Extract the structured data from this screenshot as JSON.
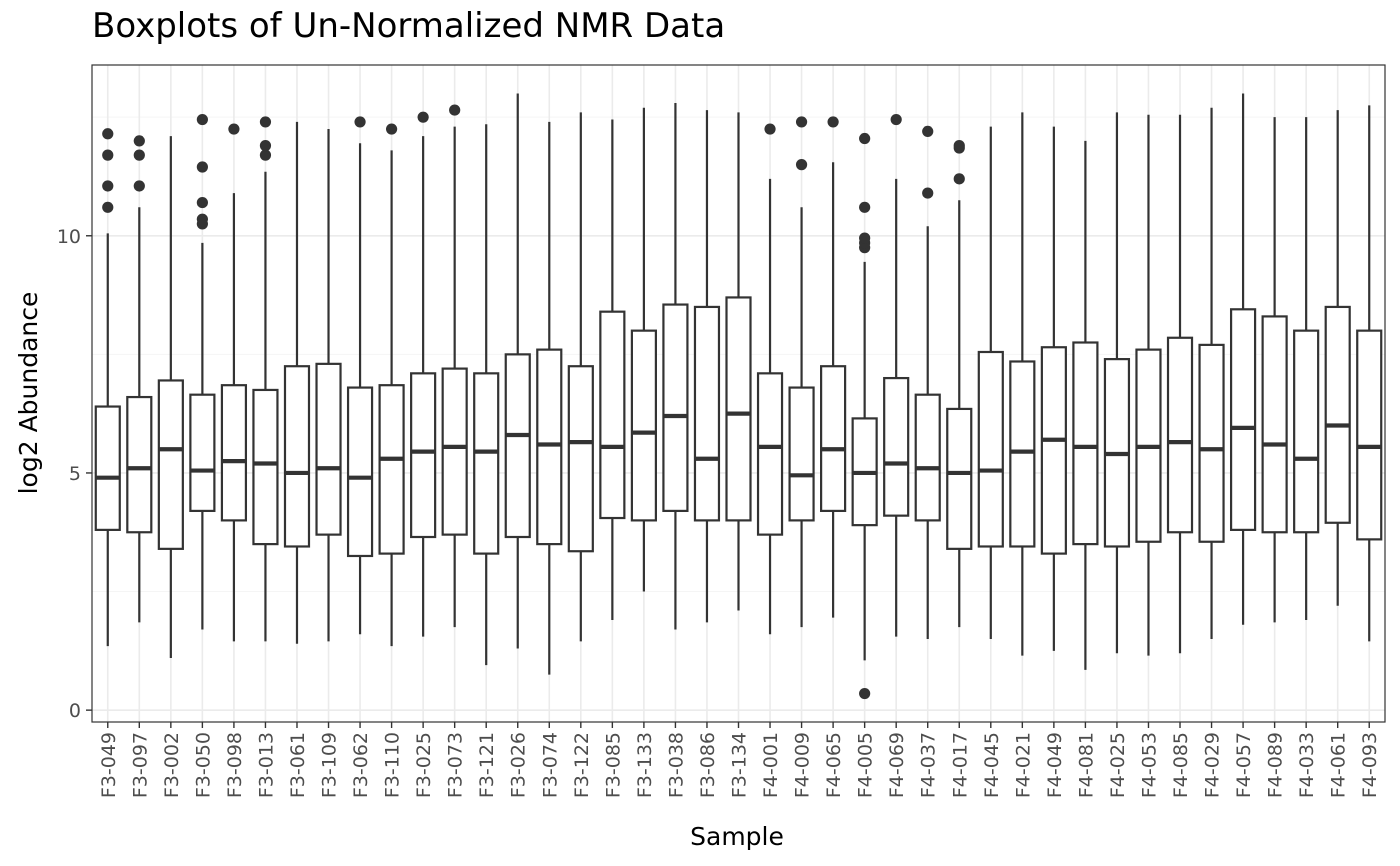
{
  "chart_data": {
    "type": "boxplot",
    "title": "Boxplots of Un-Normalized NMR Data",
    "xlabel": "Sample",
    "ylabel": "log2 Abundance",
    "ylim": [
      -0.25,
      13.6
    ],
    "yticks": [
      0,
      5,
      10
    ],
    "grid": true,
    "legend": "none",
    "colors": {
      "box": "#333333",
      "grid_major": "#ebebeb",
      "grid_minor": "#f5f5f5",
      "panel_border": "#333333",
      "tick_text": "#4d4d4d"
    },
    "categories": [
      "F3-049",
      "F3-097",
      "F3-002",
      "F3-050",
      "F3-098",
      "F3-013",
      "F3-061",
      "F3-109",
      "F3-062",
      "F3-110",
      "F3-025",
      "F3-073",
      "F3-121",
      "F3-026",
      "F3-074",
      "F3-122",
      "F3-085",
      "F3-133",
      "F3-038",
      "F3-086",
      "F3-134",
      "F4-001",
      "F4-009",
      "F4-065",
      "F4-005",
      "F4-069",
      "F4-037",
      "F4-017",
      "F4-045",
      "F4-021",
      "F4-049",
      "F4-081",
      "F4-025",
      "F4-053",
      "F4-085",
      "F4-029",
      "F4-057",
      "F4-089",
      "F4-033",
      "F4-061",
      "F4-093"
    ],
    "boxes": [
      {
        "whisker_low": 1.35,
        "q1": 3.8,
        "median": 4.9,
        "q3": 6.4,
        "whisker_high": 10.05,
        "outliers": [
          10.6,
          11.05,
          11.7,
          12.15
        ]
      },
      {
        "whisker_low": 1.85,
        "q1": 3.75,
        "median": 5.1,
        "q3": 6.6,
        "whisker_high": 10.6,
        "outliers": [
          11.05,
          11.7,
          12.0
        ]
      },
      {
        "whisker_low": 1.1,
        "q1": 3.4,
        "median": 5.5,
        "q3": 6.95,
        "whisker_high": 12.1,
        "outliers": []
      },
      {
        "whisker_low": 1.7,
        "q1": 4.2,
        "median": 5.05,
        "q3": 6.65,
        "whisker_high": 9.85,
        "outliers": [
          10.25,
          10.35,
          10.7,
          11.45,
          12.45
        ]
      },
      {
        "whisker_low": 1.45,
        "q1": 4.0,
        "median": 5.25,
        "q3": 6.85,
        "whisker_high": 10.9,
        "outliers": [
          12.25
        ]
      },
      {
        "whisker_low": 1.45,
        "q1": 3.5,
        "median": 5.2,
        "q3": 6.75,
        "whisker_high": 11.35,
        "outliers": [
          11.7,
          11.9,
          12.4
        ]
      },
      {
        "whisker_low": 1.4,
        "q1": 3.45,
        "median": 5.0,
        "q3": 7.25,
        "whisker_high": 12.4,
        "outliers": []
      },
      {
        "whisker_low": 1.45,
        "q1": 3.7,
        "median": 5.1,
        "q3": 7.3,
        "whisker_high": 12.25,
        "outliers": []
      },
      {
        "whisker_low": 1.6,
        "q1": 3.25,
        "median": 4.9,
        "q3": 6.8,
        "whisker_high": 11.95,
        "outliers": [
          12.4
        ]
      },
      {
        "whisker_low": 1.35,
        "q1": 3.3,
        "median": 5.3,
        "q3": 6.85,
        "whisker_high": 11.8,
        "outliers": [
          12.25
        ]
      },
      {
        "whisker_low": 1.55,
        "q1": 3.65,
        "median": 5.45,
        "q3": 7.1,
        "whisker_high": 12.1,
        "outliers": [
          12.5
        ]
      },
      {
        "whisker_low": 1.75,
        "q1": 3.7,
        "median": 5.55,
        "q3": 7.2,
        "whisker_high": 12.3,
        "outliers": [
          12.65
        ]
      },
      {
        "whisker_low": 0.95,
        "q1": 3.3,
        "median": 5.45,
        "q3": 7.1,
        "whisker_high": 12.35,
        "outliers": []
      },
      {
        "whisker_low": 1.3,
        "q1": 3.65,
        "median": 5.8,
        "q3": 7.5,
        "whisker_high": 13.0,
        "outliers": []
      },
      {
        "whisker_low": 0.75,
        "q1": 3.5,
        "median": 5.6,
        "q3": 7.6,
        "whisker_high": 12.4,
        "outliers": []
      },
      {
        "whisker_low": 1.45,
        "q1": 3.35,
        "median": 5.65,
        "q3": 7.25,
        "whisker_high": 12.6,
        "outliers": []
      },
      {
        "whisker_low": 1.9,
        "q1": 4.05,
        "median": 5.55,
        "q3": 8.4,
        "whisker_high": 12.45,
        "outliers": []
      },
      {
        "whisker_low": 2.5,
        "q1": 4.0,
        "median": 5.85,
        "q3": 8.0,
        "whisker_high": 12.7,
        "outliers": []
      },
      {
        "whisker_low": 1.7,
        "q1": 4.2,
        "median": 6.2,
        "q3": 8.55,
        "whisker_high": 12.8,
        "outliers": []
      },
      {
        "whisker_low": 1.85,
        "q1": 4.0,
        "median": 5.3,
        "q3": 8.5,
        "whisker_high": 12.65,
        "outliers": []
      },
      {
        "whisker_low": 2.1,
        "q1": 4.0,
        "median": 6.25,
        "q3": 8.7,
        "whisker_high": 12.6,
        "outliers": []
      },
      {
        "whisker_low": 1.6,
        "q1": 3.7,
        "median": 5.55,
        "q3": 7.1,
        "whisker_high": 11.2,
        "outliers": [
          12.25
        ]
      },
      {
        "whisker_low": 1.75,
        "q1": 4.0,
        "median": 4.95,
        "q3": 6.8,
        "whisker_high": 10.6,
        "outliers": [
          11.5,
          12.4
        ]
      },
      {
        "whisker_low": 1.95,
        "q1": 4.2,
        "median": 5.5,
        "q3": 7.25,
        "whisker_high": 11.55,
        "outliers": [
          12.4
        ]
      },
      {
        "whisker_low": 1.05,
        "q1": 3.9,
        "median": 5.0,
        "q3": 6.15,
        "whisker_high": 9.45,
        "outliers": [
          0.35,
          9.75,
          9.85,
          9.95,
          10.6,
          12.05
        ]
      },
      {
        "whisker_low": 1.55,
        "q1": 4.1,
        "median": 5.2,
        "q3": 7.0,
        "whisker_high": 11.2,
        "outliers": [
          12.45
        ]
      },
      {
        "whisker_low": 1.5,
        "q1": 4.0,
        "median": 5.1,
        "q3": 6.65,
        "whisker_high": 10.2,
        "outliers": [
          10.9,
          12.2
        ]
      },
      {
        "whisker_low": 1.75,
        "q1": 3.4,
        "median": 5.0,
        "q3": 6.35,
        "whisker_high": 10.75,
        "outliers": [
          11.2,
          11.85,
          11.9
        ]
      },
      {
        "whisker_low": 1.5,
        "q1": 3.45,
        "median": 5.05,
        "q3": 7.55,
        "whisker_high": 12.3,
        "outliers": []
      },
      {
        "whisker_low": 1.15,
        "q1": 3.45,
        "median": 5.45,
        "q3": 7.35,
        "whisker_high": 12.6,
        "outliers": []
      },
      {
        "whisker_low": 1.25,
        "q1": 3.3,
        "median": 5.7,
        "q3": 7.65,
        "whisker_high": 12.3,
        "outliers": []
      },
      {
        "whisker_low": 0.85,
        "q1": 3.5,
        "median": 5.55,
        "q3": 7.75,
        "whisker_high": 12.0,
        "outliers": []
      },
      {
        "whisker_low": 1.2,
        "q1": 3.45,
        "median": 5.4,
        "q3": 7.4,
        "whisker_high": 12.6,
        "outliers": []
      },
      {
        "whisker_low": 1.15,
        "q1": 3.55,
        "median": 5.55,
        "q3": 7.6,
        "whisker_high": 12.55,
        "outliers": []
      },
      {
        "whisker_low": 1.2,
        "q1": 3.75,
        "median": 5.65,
        "q3": 7.85,
        "whisker_high": 12.55,
        "outliers": []
      },
      {
        "whisker_low": 1.5,
        "q1": 3.55,
        "median": 5.5,
        "q3": 7.7,
        "whisker_high": 12.7,
        "outliers": []
      },
      {
        "whisker_low": 1.8,
        "q1": 3.8,
        "median": 5.95,
        "q3": 8.45,
        "whisker_high": 13.0,
        "outliers": []
      },
      {
        "whisker_low": 1.85,
        "q1": 3.75,
        "median": 5.6,
        "q3": 8.3,
        "whisker_high": 12.5,
        "outliers": []
      },
      {
        "whisker_low": 1.9,
        "q1": 3.75,
        "median": 5.3,
        "q3": 8.0,
        "whisker_high": 12.5,
        "outliers": []
      },
      {
        "whisker_low": 2.2,
        "q1": 3.95,
        "median": 6.0,
        "q3": 8.5,
        "whisker_high": 12.65,
        "outliers": []
      },
      {
        "whisker_low": 1.45,
        "q1": 3.6,
        "median": 5.55,
        "q3": 8.0,
        "whisker_high": 12.75,
        "outliers": []
      }
    ]
  }
}
